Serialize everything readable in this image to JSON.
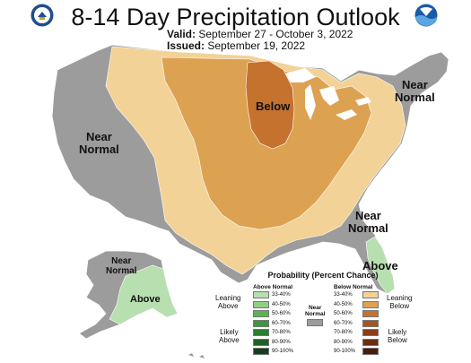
{
  "header": {
    "title": "8-14 Day Precipitation Outlook",
    "valid_label": "Valid:",
    "valid_value": "September 27 - October 3, 2022",
    "issued_label": "Issued:",
    "issued_value": "September 19, 2022"
  },
  "logos": {
    "left": {
      "icon": "doc-seal-icon"
    },
    "right": {
      "icon": "noaa-logo-icon",
      "text": "NOAA"
    }
  },
  "map_labels": {
    "near_normal_west": [
      "Near",
      "Normal"
    ],
    "near_normal_northeast": [
      "Near",
      "Normal"
    ],
    "below": "Below",
    "near_normal_southeast": [
      "Near",
      "Normal"
    ],
    "above_florida": "Above",
    "near_normal_alaska": [
      "Near",
      "Normal"
    ],
    "above_alaska": "Above"
  },
  "colors": {
    "near_normal": "#9c9c9c",
    "below_33_40": "#f2d296",
    "below_40_50": "#dca251",
    "below_50_60": "#c5722f",
    "above_33_40": "#b7dfb0",
    "ocean": "#ffffff",
    "lakes": "#ffffff"
  },
  "legend": {
    "title": "Probability (Percent Chance)",
    "above_header": "Above Normal",
    "below_header": "Below Normal",
    "near_normal_label": [
      "Near",
      "Normal"
    ],
    "leaning_above": [
      "Leaning",
      "Above"
    ],
    "likely_above": [
      "Likely",
      "Above"
    ],
    "leaning_below": [
      "Leaning",
      "Below"
    ],
    "likely_below": [
      "Likely",
      "Below"
    ],
    "above_bins": [
      {
        "label": "33-40%",
        "color": "#b7dfb0"
      },
      {
        "label": "40-50%",
        "color": "#8fcf83"
      },
      {
        "label": "50-60%",
        "color": "#5bb452"
      },
      {
        "label": "60-70%",
        "color": "#3a9a3a"
      },
      {
        "label": "70-80%",
        "color": "#2b7d30"
      },
      {
        "label": "80-90%",
        "color": "#1f5f25"
      },
      {
        "label": "90-100%",
        "color": "#12401a"
      }
    ],
    "below_bins": [
      {
        "label": "33-40%",
        "color": "#f2d296"
      },
      {
        "label": "40-50%",
        "color": "#dca251"
      },
      {
        "label": "50-60%",
        "color": "#c5722f"
      },
      {
        "label": "60-70%",
        "color": "#a8541f"
      },
      {
        "label": "70-80%",
        "color": "#8a3e17"
      },
      {
        "label": "80-90%",
        "color": "#6b2c12"
      },
      {
        "label": "90-100%",
        "color": "#4a1d0c"
      }
    ]
  }
}
